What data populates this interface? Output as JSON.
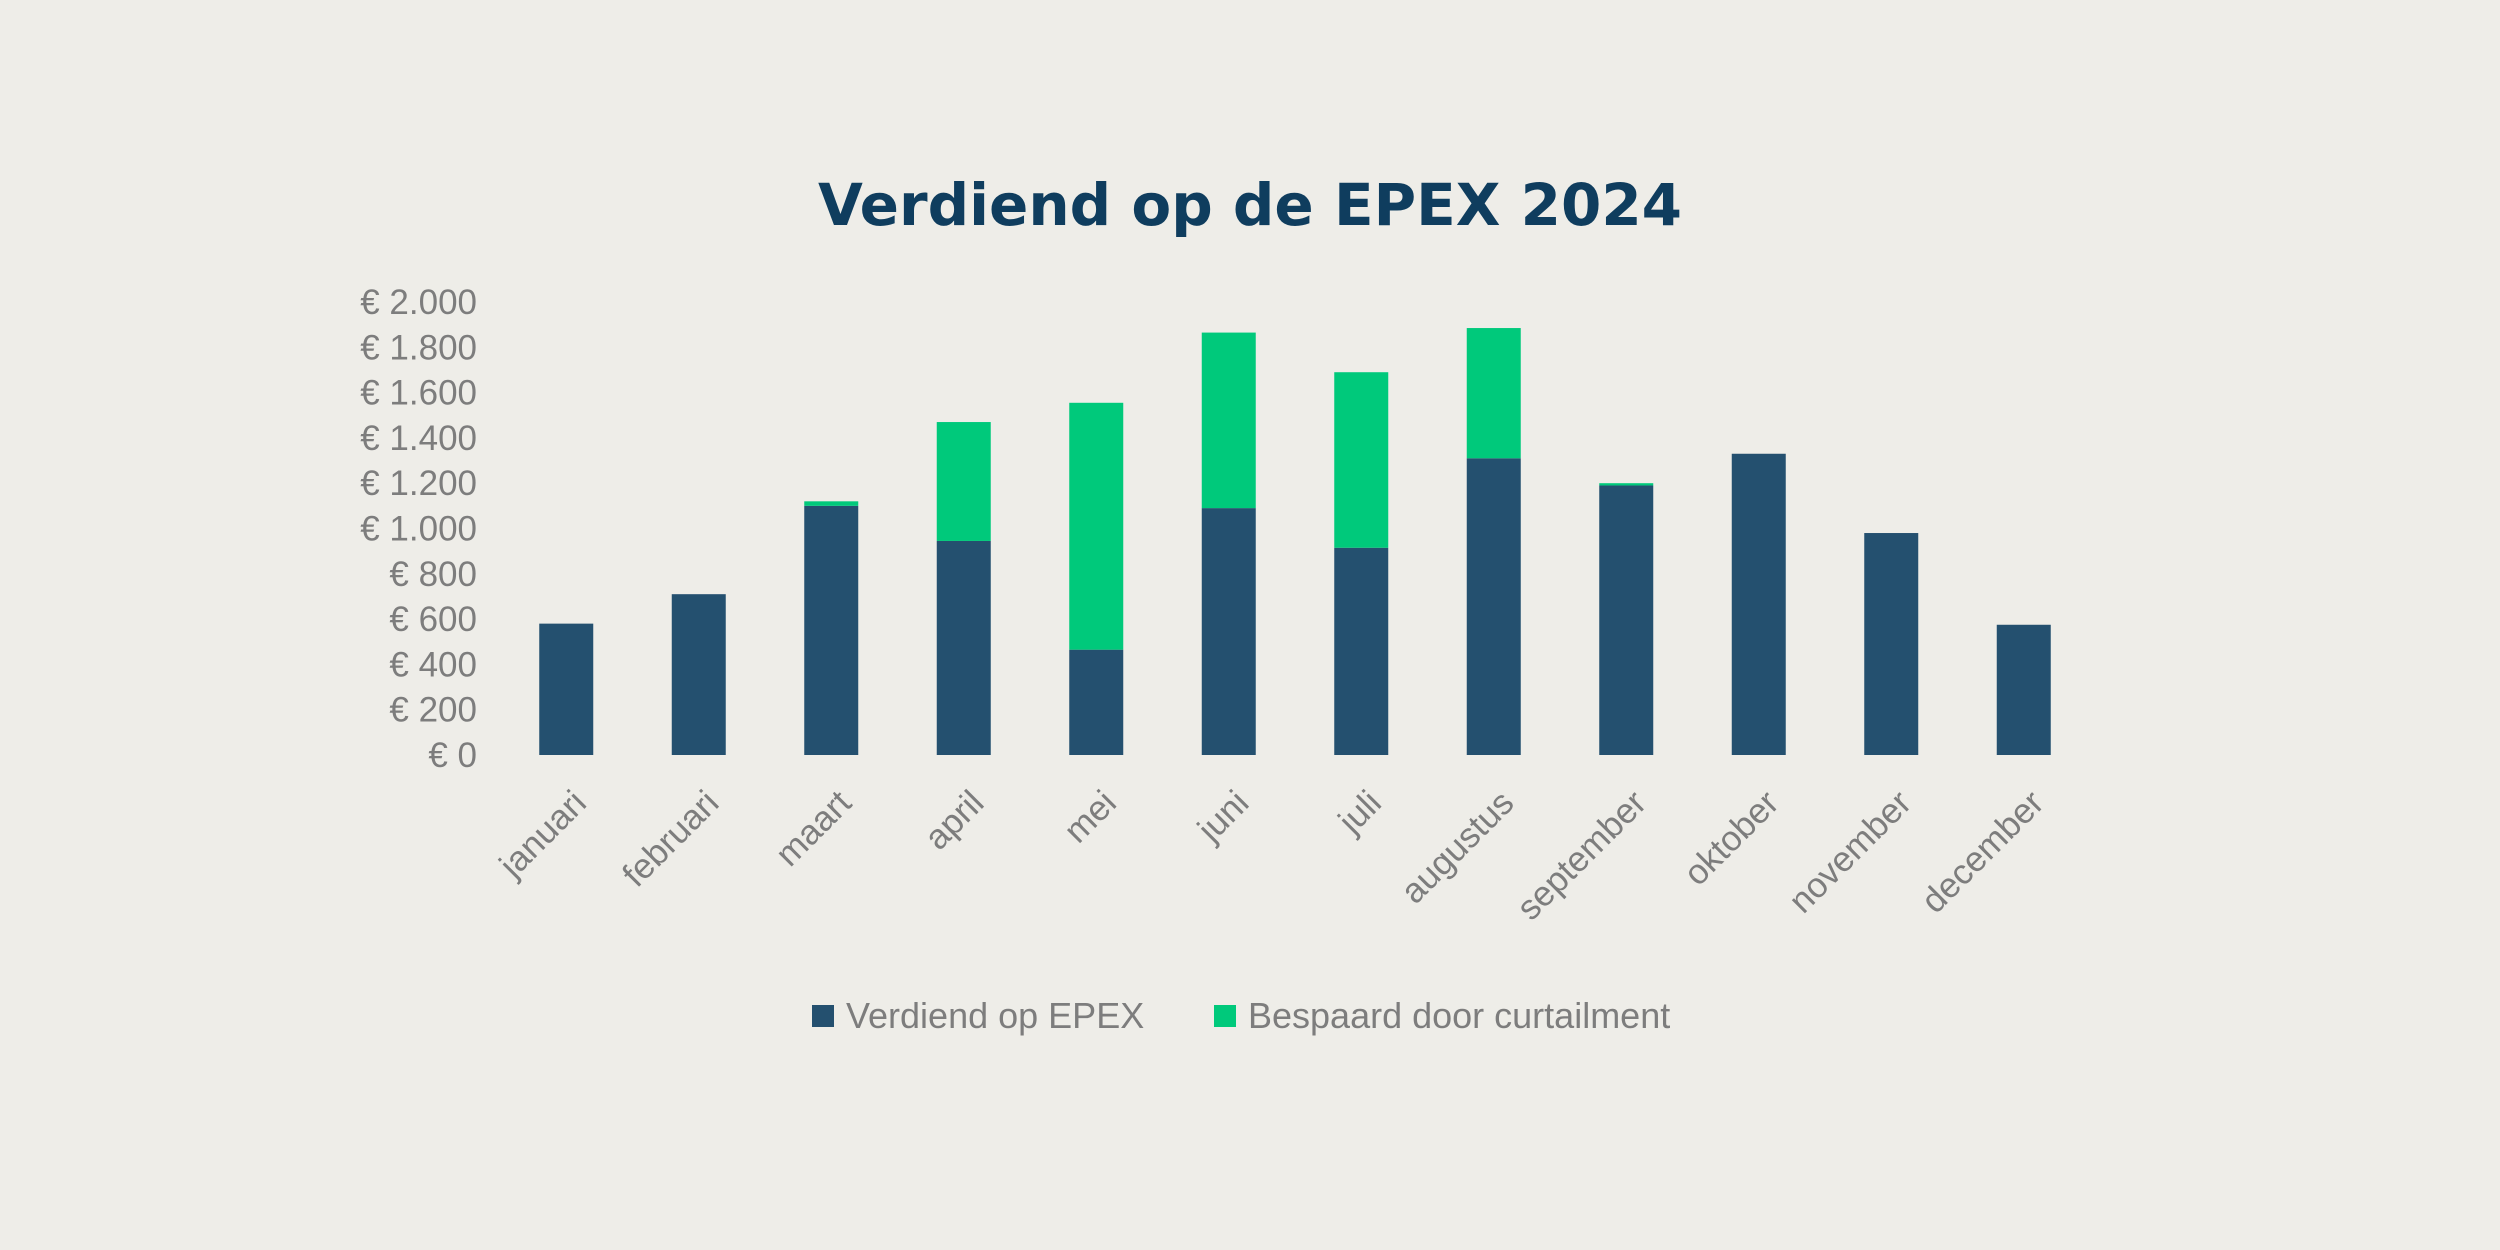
{
  "chart_data": {
    "type": "bar",
    "stacked": true,
    "title": "Verdiend op de EPEX 2024",
    "xlabel": "",
    "ylabel": "",
    "ylim": [
      0,
      2000
    ],
    "yticks": [
      0,
      200,
      400,
      600,
      800,
      1000,
      1200,
      1400,
      1600,
      1800,
      2000
    ],
    "ytick_labels": [
      "€ 0",
      "€ 200",
      "€ 400",
      "€ 600",
      "€ 800",
      "€ 1.000",
      "€ 1.200",
      "€ 1.400",
      "€ 1.600",
      "€ 1.800",
      "€ 2.000"
    ],
    "categories": [
      "januari",
      "februari",
      "maart",
      "april",
      "mei",
      "juni",
      "juli",
      "augustus",
      "september",
      "oktober",
      "november",
      "december"
    ],
    "series": [
      {
        "name": "Verdiend op EPEX",
        "color": "#24506f",
        "values": [
          580,
          710,
          1100,
          945,
          465,
          1090,
          915,
          1310,
          1190,
          1330,
          980,
          575
        ]
      },
      {
        "name": "Bespaard door curtailment",
        "color": "#00c97b",
        "values": [
          0,
          0,
          20,
          525,
          1090,
          775,
          775,
          575,
          10,
          0,
          0,
          0
        ]
      }
    ],
    "legend_position": "bottom",
    "grid": false
  }
}
